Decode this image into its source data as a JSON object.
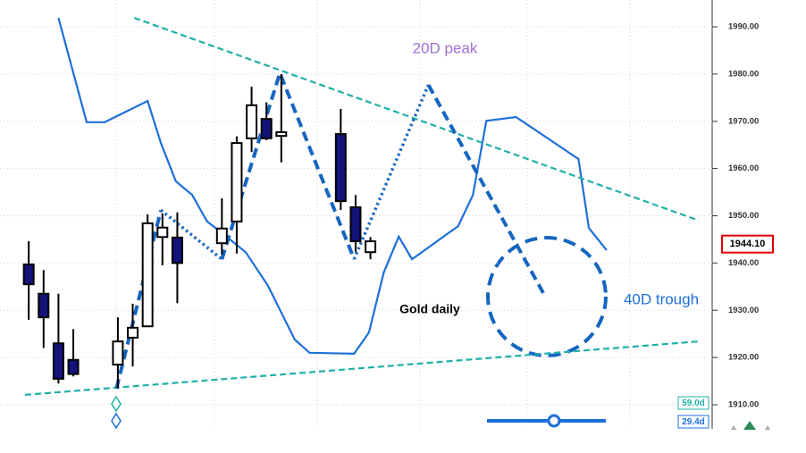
{
  "chart_data": {
    "type": "candlestick",
    "annotations": {
      "peak": "20D peak",
      "title": "Gold daily",
      "trough": "40D trough"
    },
    "cycle_labels": [
      "59.0d",
      "29.4d"
    ],
    "last_price": {
      "value": 1944.1,
      "label": "1944.10"
    },
    "xlim": [
      -0.25,
      46
    ],
    "ylim": [
      1906,
      1993
    ],
    "yticks": [
      {
        "value": 1990,
        "label": "1990.00"
      },
      {
        "value": 1980,
        "label": "1980.00"
      },
      {
        "value": 1970,
        "label": "1970.00"
      },
      {
        "value": 1960,
        "label": "1960.00"
      },
      {
        "value": 1950,
        "label": "1950.00"
      },
      {
        "value": 1940,
        "label": "1940.00"
      },
      {
        "value": 1930,
        "label": "1930.00"
      },
      {
        "value": 1920,
        "label": "1920.00"
      },
      {
        "value": 1910,
        "label": "1910.00"
      }
    ],
    "grid": true,
    "candles": {
      "color_up": "#ffffff",
      "color_down": "#13137a",
      "x": [
        0,
        1,
        2,
        3,
        6,
        7,
        8,
        9,
        10,
        13,
        14,
        15,
        16,
        17,
        21,
        22,
        23
      ],
      "open": [
        1939.7,
        1933.5,
        1923,
        1919.5,
        1918.5,
        1924.2,
        1926.6,
        1945.5,
        1945.4,
        1944.2,
        1948.8,
        1966.4,
        1970.5,
        1966.9,
        1967.3,
        1951.8,
        1942.3
      ],
      "high": [
        1944.6,
        1938.5,
        1933.5,
        1926,
        1928.5,
        1931.4,
        1950.3,
        1950.5,
        1950.7,
        1953.7,
        1966.8,
        1977.3,
        1974,
        1980,
        1972.6,
        1954.4,
        1945.5
      ],
      "low": [
        1928,
        1922,
        1914.5,
        1916,
        1913.5,
        1918.1,
        1926.5,
        1939.5,
        1931.5,
        1941.8,
        1942,
        1963.5,
        1966,
        1961.3,
        1951.2,
        1942.3,
        1940.8
      ],
      "close": [
        1935.5,
        1928.5,
        1915.5,
        1916.5,
        1923.4,
        1926.3,
        1948.4,
        1947.5,
        1940,
        1947.3,
        1965.4,
        1973.4,
        1966.4,
        1967.7,
        1953.1,
        1944.6,
        1944.6
      ]
    },
    "lines": [
      {
        "style": "solid",
        "color": "#1e6fd9",
        "x": [
          2,
          3.9,
          5.1,
          8,
          8.9,
          9.9,
          11,
          12,
          13.1,
          14.6,
          16.1,
          17.9,
          18.9,
          21.9,
          22.9,
          23.9,
          24.9,
          25.8,
          28.9,
          29.9,
          30.8,
          32.8,
          37,
          37.7,
          38.9
        ],
        "values": [
          1991.9,
          1969.8,
          1969.8,
          1974.3,
          1965.4,
          1957.3,
          1954.4,
          1948.8,
          1946.1,
          1942.3,
          1935.2,
          1923.8,
          1921,
          1920.8,
          1925.3,
          1938,
          1945.6,
          1940.8,
          1947.8,
          1954.4,
          1970.1,
          1970.9,
          1962,
          1947.4,
          1942.7
        ]
      },
      {
        "style": "trend",
        "color": "#1fb0a8",
        "x": [
          7.1,
          45.1
        ],
        "values": [
          1991.9,
          1949
        ]
      },
      {
        "style": "trend",
        "color": "#1fb0a8",
        "x": [
          -0.25,
          45.1
        ],
        "values": [
          1912.1,
          1923.4
        ]
      },
      {
        "style": "dashed",
        "color": "#1565c0",
        "x": [
          5.9,
          8.9,
          null,
          13,
          16.9,
          21.9,
          null,
          26.9,
          34.8
        ],
        "values": [
          1913.4,
          1951.2,
          null,
          1940.8,
          1980.2,
          1940.8,
          null,
          1977.7,
          1932.7
        ]
      },
      {
        "style": "dotted",
        "color": "#1565c0",
        "x": [
          8.9,
          13,
          null,
          21.9,
          26.9
        ],
        "values": [
          1951.2,
          1940.8,
          null,
          1940.8,
          1977.7
        ]
      }
    ]
  }
}
